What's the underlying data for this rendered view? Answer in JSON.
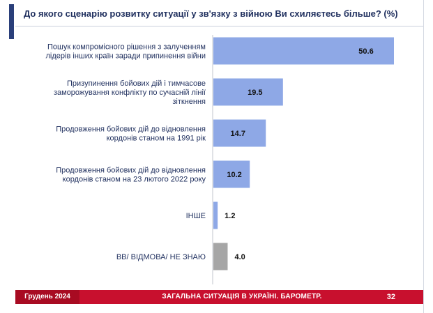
{
  "title": "До якого сценарію розвитку ситуації у зв'язку з війною Ви схиляєтесь більше? (%)",
  "chart_data": {
    "type": "bar",
    "orientation": "horizontal",
    "title": "До якого сценарію розвитку ситуації у зв'язку з війною Ви схиляєтесь більше? (%)",
    "xlim": [
      0,
      60
    ],
    "categories": [
      [
        "Пошук компромісного рішення з залученням",
        "лідерів інших країн заради припинення війни"
      ],
      [
        "Призупинення бойових дій і тимчасове",
        "заморожування конфлікту по сучасній лінії",
        "зіткнення"
      ],
      [
        "Продовження бойових дій до відновлення",
        "кордонів станом на 1991 рік"
      ],
      [
        "Продовження бойових дій до відновлення",
        "кордонів станом на 23 лютого 2022 року"
      ],
      [
        "ІНШЕ"
      ],
      [
        "ВВ/ ВІДМОВА/ НЕ ЗНАЮ"
      ]
    ],
    "values": [
      50.6,
      19.5,
      14.7,
      10.2,
      1.2,
      4.0
    ],
    "value_labels": [
      "50.6",
      "19.5",
      "14.7",
      "10.2",
      "1.2",
      "4.0"
    ],
    "colors": [
      "#8ea8e6",
      "#8ea8e6",
      "#8ea8e6",
      "#8ea8e6",
      "#8ea8e6",
      "#a6a6a6"
    ]
  },
  "footer": {
    "date": "Грудень 2024",
    "center": "ЗАГАЛЬНА СИТУАЦІЯ В УКРАЇНІ. БАРОМЕТР.",
    "page": "32"
  }
}
